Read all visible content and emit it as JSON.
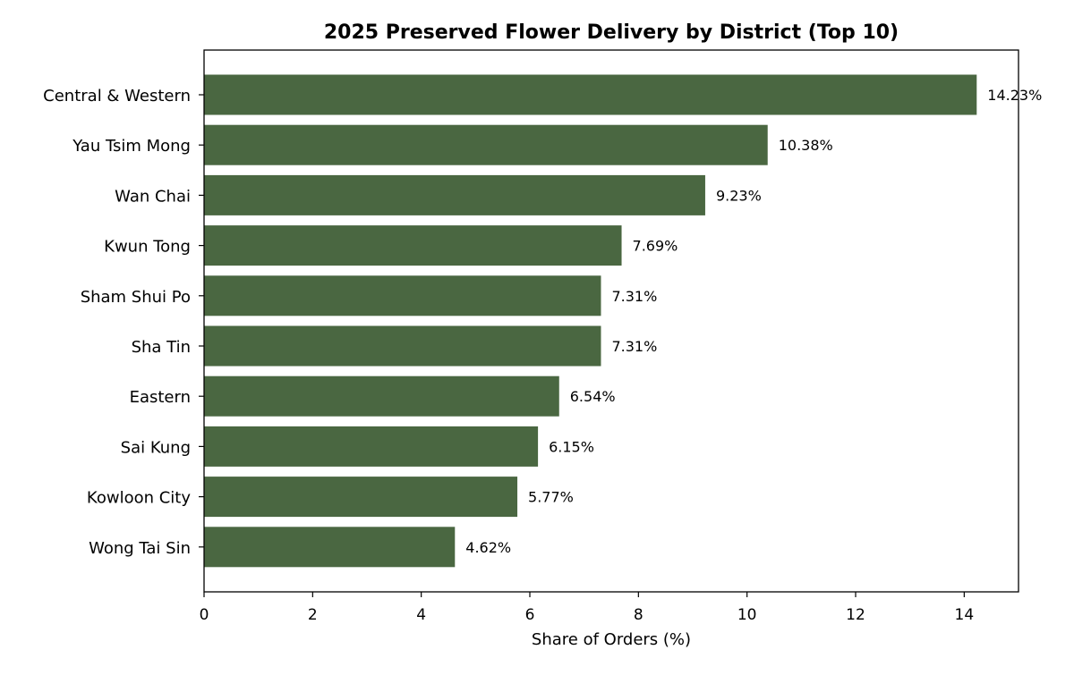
{
  "chart_data": {
    "type": "bar",
    "orientation": "horizontal",
    "title": "2025 Preserved Flower Delivery by District (Top 10)",
    "xlabel": "Share of Orders (%)",
    "ylabel": "",
    "xlim": [
      0,
      15
    ],
    "xticks": [
      0,
      2,
      4,
      6,
      8,
      10,
      12,
      14
    ],
    "grid": false,
    "bar_color": "#4a6741",
    "categories": [
      "Central & Western",
      "Yau Tsim Mong",
      "Wan Chai",
      "Kwun Tong",
      "Sham Shui Po",
      "Sha Tin",
      "Eastern",
      "Sai Kung",
      "Kowloon City",
      "Wong Tai Sin"
    ],
    "values": [
      14.23,
      10.38,
      9.23,
      7.69,
      7.31,
      7.31,
      6.54,
      6.15,
      5.77,
      4.62
    ],
    "data_labels": [
      "14.23%",
      "10.38%",
      "9.23%",
      "7.69%",
      "7.31%",
      "7.31%",
      "6.54%",
      "6.15%",
      "5.77%",
      "4.62%"
    ]
  }
}
